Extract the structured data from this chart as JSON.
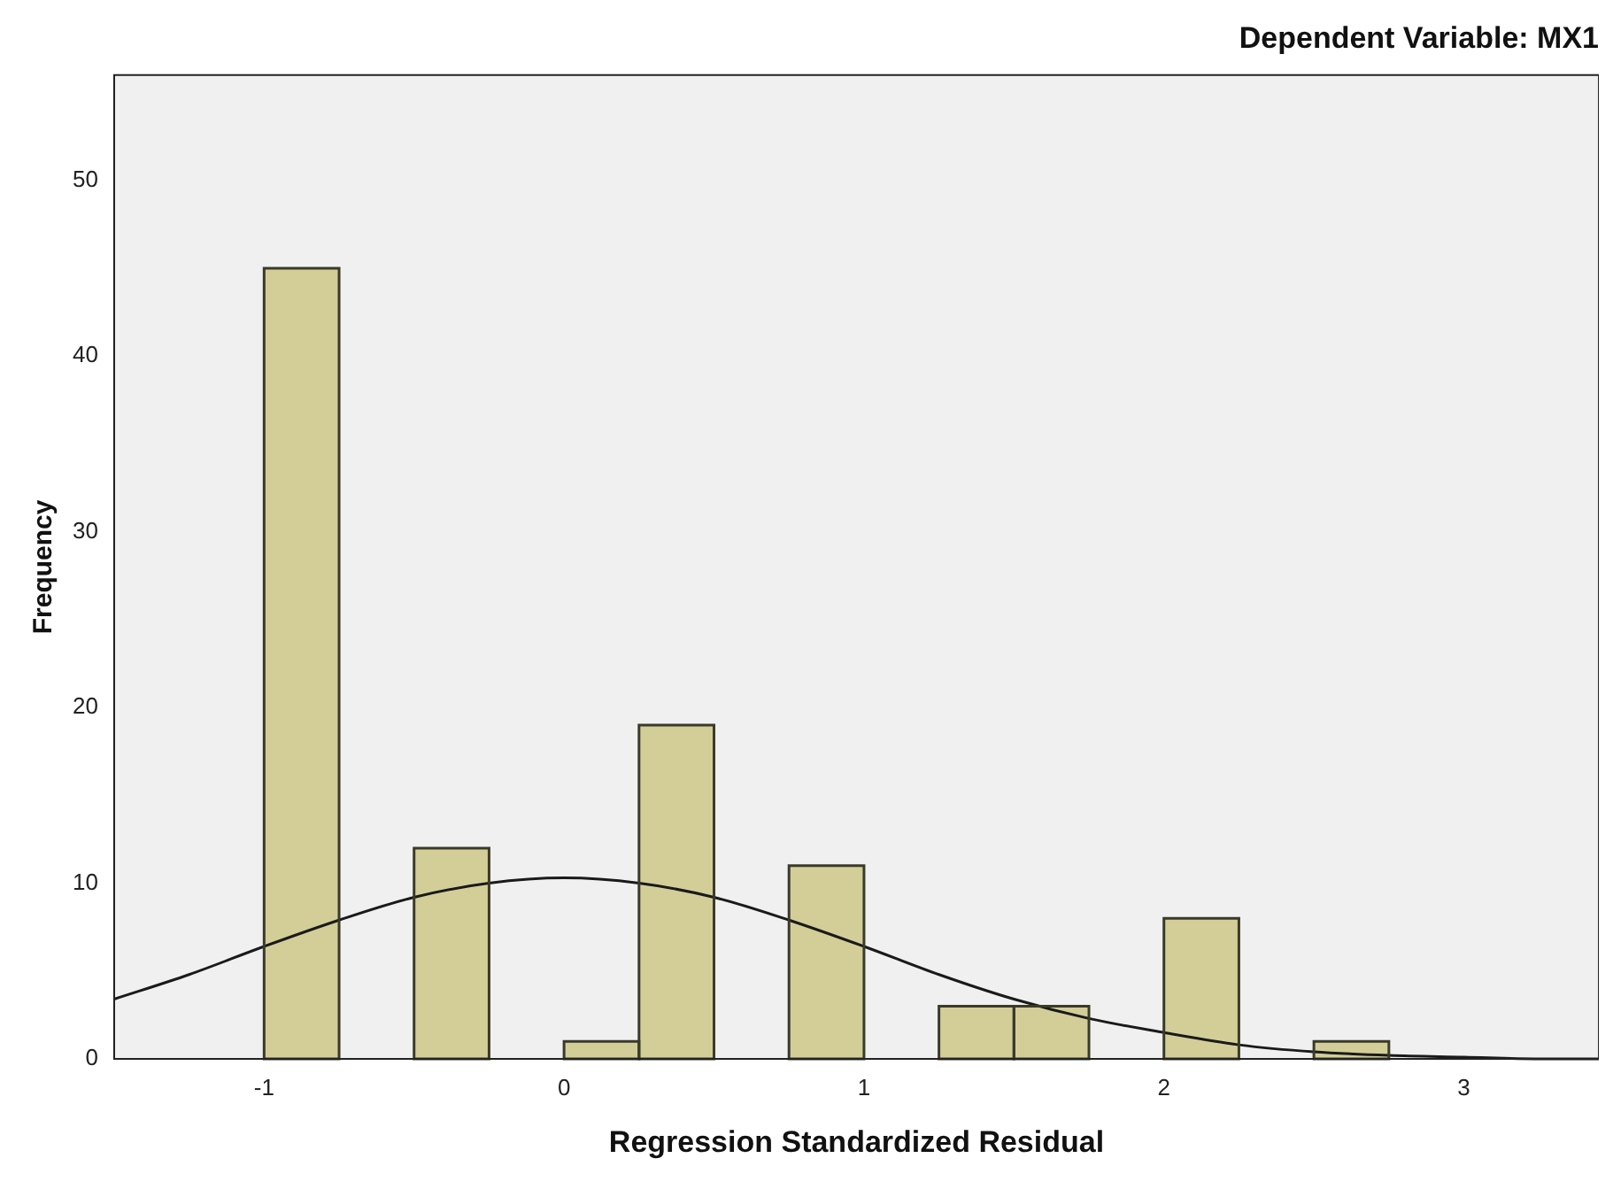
{
  "chart_data": {
    "type": "histogram",
    "title": "Dependent Variable: MX1",
    "xlabel": "Regression Standardized Residual",
    "ylabel": "Frequency",
    "bins": [
      -1,
      -0.75,
      -0.5,
      -0.25,
      0,
      0.25,
      0.5,
      0.75,
      1,
      1.25,
      1.5,
      1.75,
      2,
      2.25,
      2.5,
      2.75
    ],
    "values": [
      45,
      0,
      12,
      0,
      1,
      19,
      0,
      11,
      0,
      3,
      3,
      0,
      8,
      0,
      1
    ],
    "color": "#d3ce98",
    "series": [
      {
        "type": "line",
        "color": "#1a1a1a",
        "x": [
          -1.5,
          -1.25,
          -1,
          -0.75,
          -0.5,
          -0.25,
          0,
          0.25,
          0.5,
          0.75,
          1,
          1.25,
          1.5,
          1.75,
          2,
          2.25,
          2.5,
          2.75,
          3,
          3.25,
          3.45
        ],
        "values": [
          3.4,
          4.8,
          6.4,
          7.9,
          9.2,
          10.0,
          10.3,
          10.0,
          9.2,
          7.9,
          6.4,
          4.8,
          3.4,
          2.3,
          1.5,
          0.8,
          0.4,
          0.2,
          0.1,
          0,
          0
        ]
      }
    ],
    "xlim": [
      -1.5,
      3.45
    ],
    "xticks": [
      -1,
      0,
      1,
      2,
      3
    ],
    "ylim": [
      0,
      56
    ],
    "yticks": [
      0,
      10,
      20,
      30,
      40,
      50
    ],
    "marker": "none",
    "legend": false
  }
}
